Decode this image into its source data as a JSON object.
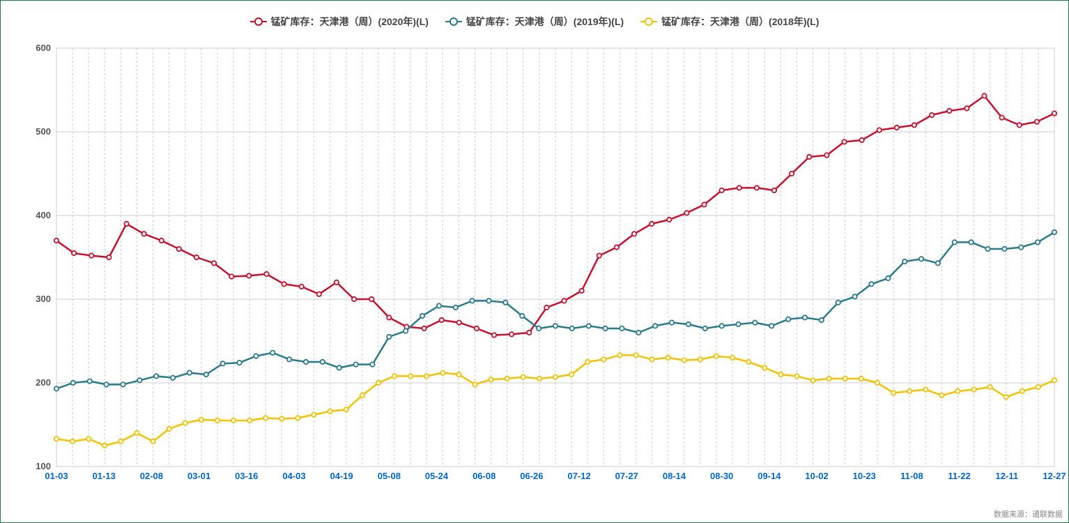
{
  "chart": {
    "type": "line",
    "background_color": "#ffffff",
    "border_color": "#1a7a4a",
    "grid_color": "#cccccc",
    "grid_dash": "3,3",
    "ylim": [
      100,
      600
    ],
    "ytick_step": 100,
    "ytick_color": "#555555",
    "xtick_color": "#0066cc",
    "tick_fontsize": 13,
    "tick_fontweight": "bold",
    "line_width": 2.5,
    "marker_radius": 3.2,
    "marker_fill": "#ffffff",
    "marker_stroke_width": 1.8,
    "x_labels": [
      "01-03",
      "01-13",
      "02-08",
      "03-01",
      "03-16",
      "04-03",
      "04-19",
      "05-08",
      "05-24",
      "06-08",
      "06-26",
      "07-12",
      "07-27",
      "08-14",
      "08-30",
      "09-14",
      "10-02",
      "10-23",
      "11-08",
      "11-22",
      "12-11",
      "12-27"
    ],
    "x_label_every": 2,
    "legend": {
      "fontsize": 14,
      "fontweight": "bold",
      "text_color": "#444444",
      "items": [
        {
          "label": "锰矿库存：天津港（周）(2020年)(L)",
          "color": "#c8102e"
        },
        {
          "label": "锰矿库存：天津港（周）(2019年)(L)",
          "color": "#2a7a8c"
        },
        {
          "label": "锰矿库存：天津港（周）(2018年)(L)",
          "color": "#f2c200"
        }
      ]
    },
    "series": [
      {
        "name": "2020",
        "color": "#c8102e",
        "values": [
          370,
          355,
          352,
          350,
          390,
          378,
          370,
          360,
          350,
          343,
          327,
          328,
          330,
          318,
          315,
          306,
          320,
          300,
          300,
          278,
          267,
          265,
          275,
          272,
          265,
          257,
          258,
          260,
          290,
          298,
          310,
          352,
          362,
          378,
          390,
          395,
          403,
          413,
          430,
          433,
          433,
          430,
          450,
          470,
          472,
          488,
          490,
          502,
          505,
          508,
          520,
          525,
          528,
          543,
          517,
          508,
          512,
          522
        ]
      },
      {
        "name": "2019",
        "color": "#2a7a8c",
        "values": [
          193,
          200,
          202,
          198,
          198,
          203,
          208,
          206,
          212,
          210,
          223,
          224,
          232,
          236,
          228,
          225,
          225,
          218,
          222,
          222,
          255,
          262,
          280,
          292,
          290,
          298,
          298,
          296,
          280,
          265,
          268,
          265,
          268,
          265,
          265,
          260,
          268,
          272,
          270,
          265,
          268,
          270,
          272,
          268,
          276,
          278,
          275,
          296,
          303,
          318,
          325,
          345,
          348,
          343,
          368,
          368,
          360,
          360,
          362,
          368,
          380
        ]
      },
      {
        "name": "2018",
        "color": "#f2c200",
        "values": [
          133,
          130,
          133,
          125,
          130,
          140,
          130,
          145,
          152,
          156,
          155,
          155,
          155,
          158,
          157,
          158,
          162,
          166,
          168,
          185,
          200,
          208,
          208,
          208,
          212,
          210,
          198,
          204,
          205,
          207,
          205,
          207,
          210,
          225,
          228,
          233,
          233,
          228,
          230,
          227,
          228,
          232,
          230,
          225,
          218,
          210,
          208,
          203,
          205,
          205,
          205,
          200,
          188,
          190,
          192,
          185,
          190,
          192,
          195,
          183,
          190,
          195,
          203
        ]
      }
    ],
    "source_label": "数据来源：通联数据",
    "source_color": "#888888",
    "source_fontsize": 11
  }
}
